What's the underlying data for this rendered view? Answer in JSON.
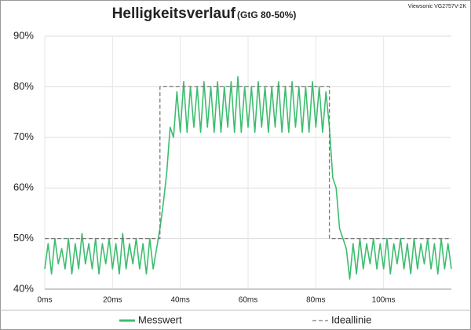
{
  "chart_data": {
    "type": "line",
    "title": "Helligkeitsverlauf",
    "subtitle": "(GtG 80-50%)",
    "annotation": "Viewsonic VG2757V-2K",
    "xlim": [
      0,
      120
    ],
    "ylim": [
      40,
      90
    ],
    "xticks": [
      {
        "value": 0,
        "label": "0ms"
      },
      {
        "value": 20,
        "label": "20ms"
      },
      {
        "value": 40,
        "label": "40ms"
      },
      {
        "value": 60,
        "label": "60ms"
      },
      {
        "value": 80,
        "label": "80ms"
      },
      {
        "value": 100,
        "label": "100ms"
      }
    ],
    "yticks": [
      {
        "value": 40,
        "label": "40%"
      },
      {
        "value": 50,
        "label": "50%"
      },
      {
        "value": 60,
        "label": "60%"
      },
      {
        "value": 70,
        "label": "70%"
      },
      {
        "value": 80,
        "label": "80%"
      },
      {
        "value": 90,
        "label": "90%"
      }
    ],
    "grid": true,
    "series": [
      {
        "name": "Messwert",
        "color": "#3dbd6f",
        "line_style": "solid",
        "x": [
          0,
          1,
          2,
          3,
          4,
          5,
          6,
          7,
          8,
          9,
          10,
          11,
          12,
          13,
          14,
          15,
          16,
          17,
          18,
          19,
          20,
          21,
          22,
          23,
          24,
          25,
          26,
          27,
          28,
          29,
          30,
          31,
          32,
          33,
          34,
          35,
          36,
          37,
          38,
          39,
          40,
          41,
          42,
          43,
          44,
          45,
          46,
          47,
          48,
          49,
          50,
          51,
          52,
          53,
          54,
          55,
          56,
          57,
          58,
          59,
          60,
          61,
          62,
          63,
          64,
          65,
          66,
          67,
          68,
          69,
          70,
          71,
          72,
          73,
          74,
          75,
          76,
          77,
          78,
          79,
          80,
          81,
          82,
          83,
          84,
          85,
          86,
          87,
          88,
          89,
          90,
          91,
          92,
          93,
          94,
          95,
          96,
          97,
          98,
          99,
          100,
          101,
          102,
          103,
          104,
          105,
          106,
          107,
          108,
          109,
          110,
          111,
          112,
          113,
          114,
          115,
          116,
          117,
          118,
          119,
          120
        ],
        "values": [
          44,
          49,
          43,
          50,
          45,
          48,
          44,
          50,
          43,
          49,
          44,
          51,
          45,
          49,
          44,
          50,
          43,
          49,
          45,
          50,
          44,
          49,
          43,
          51,
          44,
          49,
          45,
          50,
          44,
          49,
          43,
          50,
          44,
          48,
          52,
          57,
          63,
          72,
          70,
          79,
          71,
          81,
          71,
          80,
          72,
          80,
          71,
          81,
          72,
          80,
          71,
          81,
          71,
          80,
          72,
          81,
          71,
          82,
          71,
          80,
          72,
          80,
          71,
          81,
          72,
          80,
          71,
          80,
          72,
          81,
          71,
          80,
          71,
          81,
          72,
          80,
          71,
          80,
          71,
          81,
          72,
          80,
          71,
          79,
          72,
          62,
          60,
          52,
          50,
          48,
          42,
          49,
          43,
          50,
          44,
          49,
          45,
          50,
          44,
          49,
          44,
          50,
          43,
          49,
          45,
          50,
          44,
          49,
          43,
          50,
          44,
          49,
          45,
          50,
          44,
          49,
          43,
          50,
          44,
          49,
          44
        ]
      },
      {
        "name": "Ideallinie",
        "color": "#777777",
        "line_style": "dashed",
        "x": [
          0,
          34,
          34,
          84,
          84,
          120
        ],
        "values": [
          50,
          50,
          80,
          80,
          50,
          50
        ]
      }
    ]
  }
}
